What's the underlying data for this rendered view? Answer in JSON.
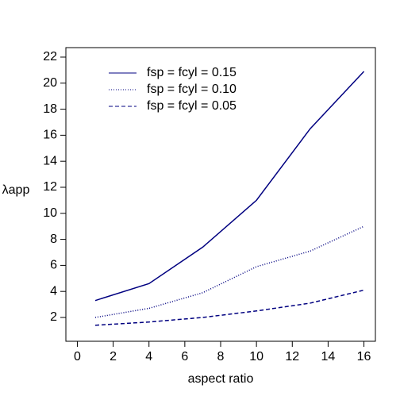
{
  "chart_data": {
    "type": "line",
    "x_label": "aspect ratio",
    "y_label": "λapp",
    "x": [
      1,
      4,
      7,
      10,
      13,
      16
    ],
    "series": [
      {
        "name": "fsp = fcyl = 0.15",
        "color": "#000080",
        "linestyle": "solid",
        "values": [
          3.3,
          4.6,
          7.4,
          11.0,
          16.5,
          20.9
        ]
      },
      {
        "name": "fsp = fcyl = 0.10",
        "color": "#000080",
        "linestyle": "dotted",
        "values": [
          2.0,
          2.7,
          3.9,
          5.9,
          7.1,
          9.0
        ]
      },
      {
        "name": "fsp = fcyl = 0.05",
        "color": "#000080",
        "linestyle": "dashed",
        "values": [
          1.4,
          1.65,
          2.0,
          2.5,
          3.1,
          4.1
        ]
      }
    ],
    "xlim": [
      -0.64,
      16.64
    ],
    "xticks": [
      0,
      2,
      4,
      6,
      8,
      10,
      12,
      14,
      16
    ],
    "ylim": [
      0.17,
      22.73
    ],
    "yticks": [
      2,
      4,
      6,
      8,
      10,
      12,
      14,
      16,
      18,
      20,
      22
    ],
    "legend": "top-left"
  }
}
